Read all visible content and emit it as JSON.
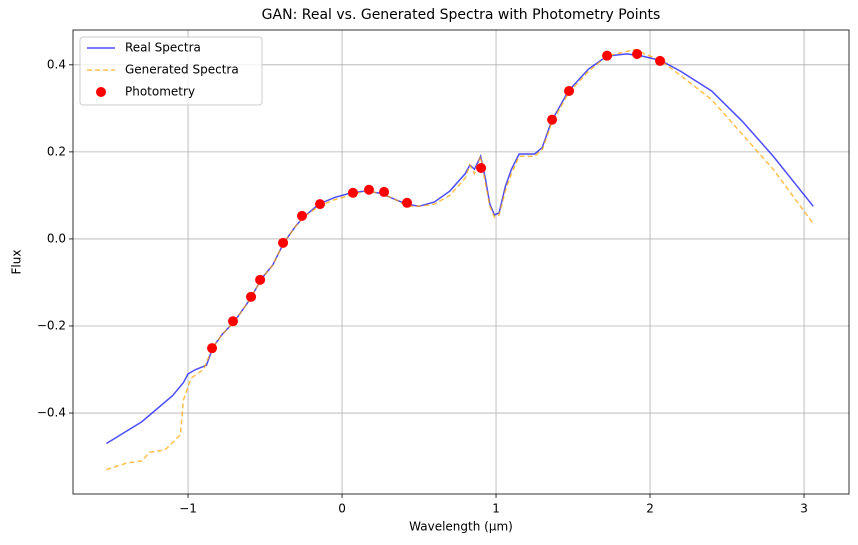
{
  "chart_data": {
    "type": "line",
    "title": "GAN: Real vs. Generated Spectra with Photometry Points",
    "xlabel": "Wavelength (μm)",
    "ylabel": "Flux",
    "xlim": [
      -1.747,
      3.292
    ],
    "ylim": [
      -0.586,
      0.48
    ],
    "xticks": [
      {
        "value": -1,
        "label": "−1"
      },
      0,
      1,
      2,
      3
    ],
    "yticks": [
      {
        "value": -0.4,
        "label": "−0.4"
      },
      {
        "value": -0.2,
        "label": "−0.2"
      },
      {
        "value": 0,
        "label": "0.0"
      },
      0.2,
      0.4
    ],
    "grid": true,
    "legend": "upper left",
    "series": [
      {
        "name": "Real Spectra",
        "type": "line",
        "style": "solid",
        "color": "#0000ff",
        "x": [
          -1.53,
          -1.3,
          -1.1,
          -1.03,
          -1.0,
          -0.95,
          -0.88,
          -0.84,
          -0.78,
          -0.7,
          -0.6,
          -0.52,
          -0.45,
          -0.38,
          -0.3,
          -0.25,
          -0.15,
          -0.05,
          0.05,
          0.15,
          0.25,
          0.35,
          0.42,
          0.5,
          0.6,
          0.7,
          0.8,
          0.83,
          0.86,
          0.9,
          0.93,
          0.96,
          0.99,
          1.02,
          1.06,
          1.1,
          1.15,
          1.25,
          1.3,
          1.36,
          1.47,
          1.6,
          1.72,
          1.85,
          1.95,
          2.07,
          2.2,
          2.4,
          2.6,
          2.8,
          3.06
        ],
        "values": [
          -0.47,
          -0.42,
          -0.36,
          -0.33,
          -0.31,
          -0.3,
          -0.29,
          -0.25,
          -0.22,
          -0.19,
          -0.14,
          -0.09,
          -0.06,
          -0.01,
          0.03,
          0.05,
          0.08,
          0.095,
          0.105,
          0.11,
          0.105,
          0.09,
          0.08,
          0.075,
          0.085,
          0.11,
          0.15,
          0.17,
          0.16,
          0.19,
          0.14,
          0.08,
          0.055,
          0.06,
          0.12,
          0.16,
          0.195,
          0.195,
          0.21,
          0.27,
          0.34,
          0.39,
          0.42,
          0.425,
          0.42,
          0.41,
          0.385,
          0.34,
          0.27,
          0.19,
          0.075
        ]
      },
      {
        "name": "Generated Spectra",
        "type": "line",
        "style": "dashed",
        "color": "#ffa500",
        "x": [
          -1.53,
          -1.4,
          -1.3,
          -1.25,
          -1.15,
          -1.05,
          -1.03,
          -0.98,
          -0.9,
          -0.84,
          -0.78,
          -0.7,
          -0.6,
          -0.52,
          -0.45,
          -0.38,
          -0.3,
          -0.25,
          -0.15,
          -0.05,
          0.05,
          0.15,
          0.25,
          0.35,
          0.42,
          0.5,
          0.6,
          0.7,
          0.8,
          0.83,
          0.86,
          0.9,
          0.93,
          0.96,
          0.99,
          1.02,
          1.06,
          1.1,
          1.15,
          1.25,
          1.3,
          1.36,
          1.47,
          1.6,
          1.72,
          1.9,
          2.07,
          2.2,
          2.4,
          2.6,
          2.8,
          3.06
        ],
        "values": [
          -0.53,
          -0.515,
          -0.51,
          -0.49,
          -0.485,
          -0.45,
          -0.37,
          -0.32,
          -0.3,
          -0.25,
          -0.22,
          -0.19,
          -0.14,
          -0.09,
          -0.06,
          -0.01,
          0.03,
          0.05,
          0.075,
          0.09,
          0.1,
          0.11,
          0.105,
          0.09,
          0.075,
          0.075,
          0.08,
          0.1,
          0.14,
          0.17,
          0.15,
          0.19,
          0.13,
          0.075,
          0.05,
          0.055,
          0.11,
          0.15,
          0.19,
          0.19,
          0.205,
          0.265,
          0.335,
          0.385,
          0.42,
          0.435,
          0.41,
          0.375,
          0.32,
          0.24,
          0.16,
          0.035
        ]
      },
      {
        "name": "Photometry",
        "type": "scatter",
        "color": "#ff0000",
        "x": [
          -0.844,
          -0.708,
          -0.591,
          -0.532,
          -0.383,
          -0.26,
          -0.143,
          0.071,
          0.175,
          0.273,
          0.422,
          0.903,
          1.364,
          1.474,
          1.721,
          1.916,
          2.065
        ],
        "values": [
          -0.251,
          -0.189,
          -0.133,
          -0.094,
          -0.009,
          0.053,
          0.08,
          0.106,
          0.113,
          0.108,
          0.083,
          0.163,
          0.274,
          0.34,
          0.421,
          0.425,
          0.409
        ]
      }
    ]
  }
}
